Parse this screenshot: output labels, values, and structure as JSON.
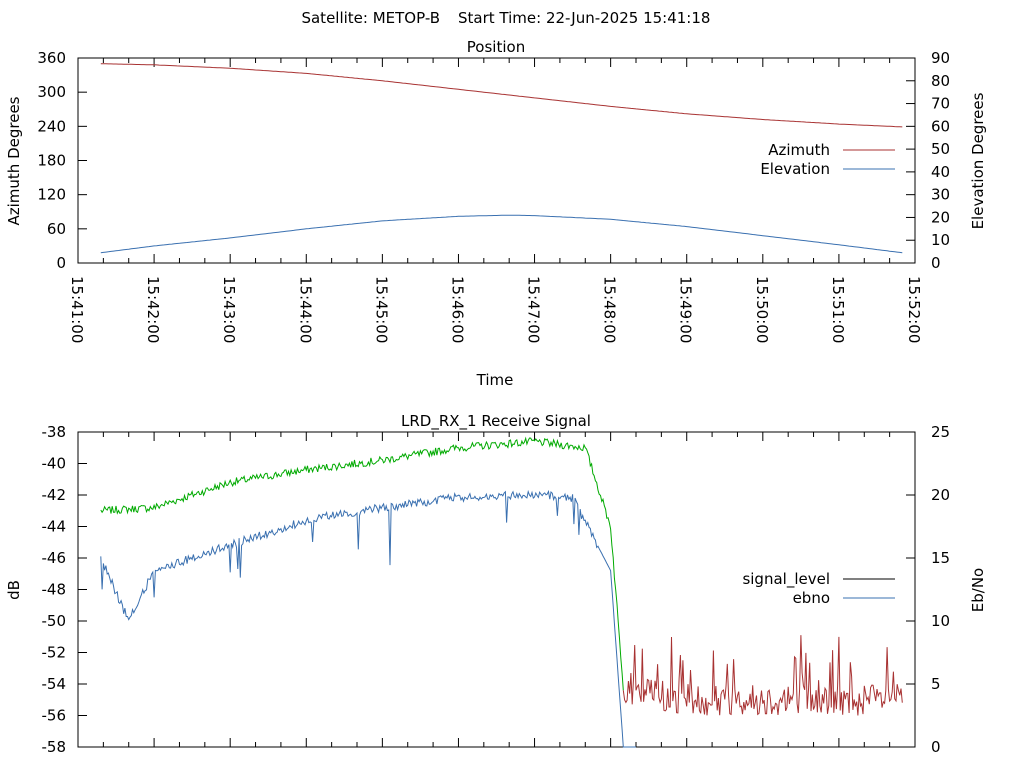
{
  "header": {
    "satellite_text": "Satellite: METOP-B",
    "start_time_text": "Start Time: 22-Jun-2025 15:41:18"
  },
  "chart_data": [
    {
      "type": "line",
      "title": "Position",
      "xlabel": "Time",
      "ylabel_left": "Azimuth Degrees",
      "ylabel_right": "Elevation Degrees",
      "x_ticks": [
        "15:41:00",
        "15:42:00",
        "15:43:00",
        "15:44:00",
        "15:45:00",
        "15:46:00",
        "15:47:00",
        "15:48:00",
        "15:49:00",
        "15:50:00",
        "15:51:00",
        "15:52:00"
      ],
      "y_left_ticks": [
        0,
        60,
        120,
        180,
        240,
        300,
        360
      ],
      "y_right_ticks": [
        0,
        10,
        20,
        30,
        40,
        50,
        60,
        70,
        80,
        90
      ],
      "y_left_range": [
        0,
        360
      ],
      "y_right_range": [
        0,
        90
      ],
      "x_range": [
        "15:41:00",
        "15:52:00"
      ],
      "legend_position": "right",
      "series": [
        {
          "name": "Azimuth",
          "axis": "left",
          "color": "#a83232",
          "points": [
            [
              "15:41:18",
              350
            ],
            [
              "15:42:00",
              348
            ],
            [
              "15:43:00",
              342
            ],
            [
              "15:44:00",
              333
            ],
            [
              "15:45:00",
              320
            ],
            [
              "15:46:00",
              305
            ],
            [
              "15:47:00",
              290
            ],
            [
              "15:48:00",
              275
            ],
            [
              "15:49:00",
              262
            ],
            [
              "15:50:00",
              252
            ],
            [
              "15:51:00",
              244
            ],
            [
              "15:51:50",
              239
            ]
          ]
        },
        {
          "name": "Elevation",
          "axis": "right",
          "color": "#3a70b0",
          "points": [
            [
              "15:41:18",
              4.5
            ],
            [
              "15:42:00",
              7.5
            ],
            [
              "15:43:00",
              11
            ],
            [
              "15:44:00",
              15
            ],
            [
              "15:45:00",
              18.5
            ],
            [
              "15:46:00",
              20.5
            ],
            [
              "15:46:40",
              21
            ],
            [
              "15:47:00",
              20.8
            ],
            [
              "15:48:00",
              19.2
            ],
            [
              "15:49:00",
              16
            ],
            [
              "15:50:00",
              12
            ],
            [
              "15:51:00",
              8
            ],
            [
              "15:51:50",
              4.5
            ]
          ]
        }
      ]
    },
    {
      "type": "line",
      "title": "LRD_RX_1 Receive Signal",
      "ylabel_left": "dB",
      "ylabel_right": "Eb/No",
      "y_left_ticks": [
        -38,
        -40,
        -42,
        -44,
        -46,
        -48,
        -50,
        -52,
        -54,
        -56,
        -58
      ],
      "y_right_ticks": [
        0,
        5,
        10,
        15,
        20,
        25
      ],
      "y_left_range": [
        -58,
        -38
      ],
      "y_right_range": [
        0,
        25
      ],
      "x_range": [
        "15:41:00",
        "15:52:00"
      ],
      "legend_position": "right",
      "series": [
        {
          "name": "signal_level",
          "axis": "left",
          "legend_color": "#000000",
          "colors": {
            "acquired": "#00aa00",
            "noise": "#a83232"
          },
          "points": [
            [
              "15:41:18",
              -43.0
            ],
            [
              "15:42:00",
              -42.8
            ],
            [
              "15:43:00",
              -41.2
            ],
            [
              "15:44:00",
              -40.4
            ],
            [
              "15:45:00",
              -39.8
            ],
            [
              "15:46:00",
              -39.0
            ],
            [
              "15:47:00",
              -38.6
            ],
            [
              "15:47:40",
              -39.0
            ],
            [
              "15:48:00",
              -44.0
            ],
            [
              "15:48:10",
              -54.2
            ],
            [
              "15:49:00",
              -55.0
            ],
            [
              "15:50:00",
              -55.0
            ],
            [
              "15:51:00",
              -55.0
            ],
            [
              "15:51:50",
              -55.0
            ]
          ]
        },
        {
          "name": "ebno",
          "axis": "right",
          "color": "#3a70b0",
          "points": [
            [
              "15:41:18",
              15
            ],
            [
              "15:41:40",
              10
            ],
            [
              "15:42:00",
              14
            ],
            [
              "15:43:00",
              16
            ],
            [
              "15:44:00",
              18
            ],
            [
              "15:45:00",
              19
            ],
            [
              "15:46:00",
              19.8
            ],
            [
              "15:47:00",
              20
            ],
            [
              "15:47:30",
              19.8
            ],
            [
              "15:48:00",
              14
            ],
            [
              "15:48:10",
              0
            ]
          ]
        }
      ]
    }
  ]
}
